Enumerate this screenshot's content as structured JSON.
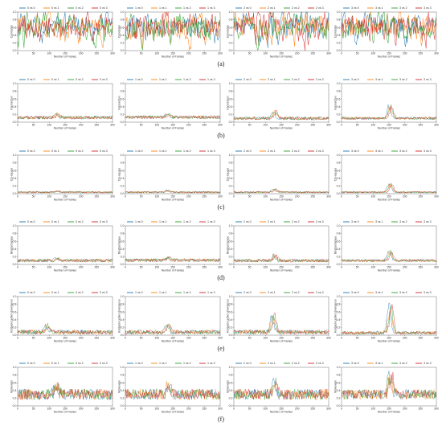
{
  "colors": {
    "series": [
      "#1f77b4",
      "#ff7f0e",
      "#2ca02c",
      "#d62728"
    ],
    "axis": "#333333",
    "background": "#ffffff"
  },
  "x_ticks": [
    0,
    50,
    100,
    150,
    200,
    250,
    300
  ],
  "x_axis_label": "Number of Frames",
  "chart_data": [
    {
      "type": "line",
      "panel": "(a)",
      "ylabel": "Correlation",
      "yticks": [
        0.0,
        0.2,
        0.4,
        0.6,
        0.8,
        1.0
      ],
      "ylim": [
        0,
        1.0
      ],
      "xlim": [
        0,
        300
      ],
      "subplots": [
        {
          "series": [
            {
              "name": "0 vs 0"
            },
            {
              "name": "0 vs 1"
            },
            {
              "name": "0 vs 2"
            },
            {
              "name": "0 vs 3"
            }
          ],
          "profile": {
            "base": 0.45,
            "noise": 0.45,
            "peak_x": 0,
            "peak_h": 0,
            "spiky": true
          }
        },
        {
          "series": [
            {
              "name": "1 vs 0"
            },
            {
              "name": "1 vs 1"
            },
            {
              "name": "1 vs 2"
            },
            {
              "name": "1 vs 3"
            }
          ],
          "profile": {
            "base": 0.45,
            "noise": 0.45,
            "peak_x": 0,
            "peak_h": 0,
            "spiky": true
          }
        },
        {
          "series": [
            {
              "name": "2 vs 0"
            },
            {
              "name": "2 vs 1"
            },
            {
              "name": "2 vs 2"
            },
            {
              "name": "2 vs 3"
            }
          ],
          "profile": {
            "base": 0.45,
            "noise": 0.45,
            "peak_x": 0,
            "peak_h": 0,
            "spiky": true
          }
        },
        {
          "series": [
            {
              "name": "3 vs 0"
            },
            {
              "name": "3 vs 1"
            },
            {
              "name": "3 vs 2"
            },
            {
              "name": "3 vs 3"
            }
          ],
          "profile": {
            "base": 0.45,
            "noise": 0.45,
            "peak_x": 0,
            "peak_h": 0,
            "spiky": true
          }
        }
      ]
    },
    {
      "type": "line",
      "panel": "(b)",
      "ylabel": "Intersection",
      "yticks": [
        0.0,
        0.2,
        0.4,
        0.6,
        0.8,
        1.0
      ],
      "ylim": [
        0,
        1.0
      ],
      "xlim": [
        0,
        300
      ],
      "subplots": [
        {
          "series": [
            {
              "name": "0 vs 0"
            },
            {
              "name": "0 vs 1"
            },
            {
              "name": "0 vs 2"
            },
            {
              "name": "0 vs 3"
            }
          ],
          "profile": {
            "base": 0.12,
            "noise": 0.06,
            "peak_x": 120,
            "peak_h": 0.1,
            "spiky": false
          }
        },
        {
          "series": [
            {
              "name": "1 vs 0"
            },
            {
              "name": "1 vs 1"
            },
            {
              "name": "1 vs 2"
            },
            {
              "name": "1 vs 3"
            }
          ],
          "profile": {
            "base": 0.13,
            "noise": 0.06,
            "peak_x": 130,
            "peak_h": 0.1,
            "spiky": false
          }
        },
        {
          "series": [
            {
              "name": "2 vs 0"
            },
            {
              "name": "2 vs 1"
            },
            {
              "name": "2 vs 2"
            },
            {
              "name": "2 vs 3"
            }
          ],
          "profile": {
            "base": 0.1,
            "noise": 0.06,
            "peak_x": 125,
            "peak_h": 0.2,
            "spiky": false
          }
        },
        {
          "series": [
            {
              "name": "3 vs 0"
            },
            {
              "name": "3 vs 1"
            },
            {
              "name": "3 vs 2"
            },
            {
              "name": "3 vs 3"
            }
          ],
          "profile": {
            "base": 0.1,
            "noise": 0.05,
            "peak_x": 150,
            "peak_h": 0.4,
            "spiky": false
          }
        }
      ]
    },
    {
      "type": "line",
      "panel": "(c)",
      "ylabel": "Chi-square",
      "yticks": [
        0.0,
        0.2,
        0.4,
        0.6,
        0.8,
        1.0
      ],
      "ylim": [
        0,
        1.0
      ],
      "xlim": [
        0,
        300
      ],
      "subplots": [
        {
          "series": [
            {
              "name": "0 vs 0"
            },
            {
              "name": "0 vs 1"
            },
            {
              "name": "0 vs 2"
            },
            {
              "name": "0 vs 3"
            }
          ],
          "profile": {
            "base": 0.04,
            "noise": 0.03,
            "peak_x": 120,
            "peak_h": 0.04,
            "spiky": false
          }
        },
        {
          "series": [
            {
              "name": "1 vs 0"
            },
            {
              "name": "1 vs 1"
            },
            {
              "name": "1 vs 2"
            },
            {
              "name": "1 vs 3"
            }
          ],
          "profile": {
            "base": 0.04,
            "noise": 0.03,
            "peak_x": 130,
            "peak_h": 0.05,
            "spiky": false
          }
        },
        {
          "series": [
            {
              "name": "2 vs 0"
            },
            {
              "name": "2 vs 1"
            },
            {
              "name": "2 vs 2"
            },
            {
              "name": "2 vs 3"
            }
          ],
          "profile": {
            "base": 0.04,
            "noise": 0.03,
            "peak_x": 125,
            "peak_h": 0.1,
            "spiky": false
          }
        },
        {
          "series": [
            {
              "name": "3 vs 0"
            },
            {
              "name": "3 vs 1"
            },
            {
              "name": "3 vs 2"
            },
            {
              "name": "3 vs 3"
            }
          ],
          "profile": {
            "base": 0.04,
            "noise": 0.03,
            "peak_x": 150,
            "peak_h": 0.25,
            "spiky": false
          }
        }
      ]
    },
    {
      "type": "line",
      "panel": "(d)",
      "ylabel": "Bhattacharyya",
      "yticks": [
        0.0,
        0.2,
        0.4,
        0.6,
        0.8,
        1.0
      ],
      "ylim": [
        0,
        1.0
      ],
      "xlim": [
        0,
        300
      ],
      "subplots": [
        {
          "series": [
            {
              "name": "0 vs 0"
            },
            {
              "name": "0 vs 1"
            },
            {
              "name": "0 vs 2"
            },
            {
              "name": "0 vs 3"
            }
          ],
          "profile": {
            "base": 0.1,
            "noise": 0.06,
            "peak_x": 120,
            "peak_h": 0.08,
            "spiky": false
          }
        },
        {
          "series": [
            {
              "name": "1 vs 0"
            },
            {
              "name": "1 vs 1"
            },
            {
              "name": "1 vs 2"
            },
            {
              "name": "1 vs 3"
            }
          ],
          "profile": {
            "base": 0.11,
            "noise": 0.06,
            "peak_x": 130,
            "peak_h": 0.08,
            "spiky": false
          }
        },
        {
          "series": [
            {
              "name": "2 vs 0"
            },
            {
              "name": "2 vs 1"
            },
            {
              "name": "2 vs 2"
            },
            {
              "name": "2 vs 3"
            }
          ],
          "profile": {
            "base": 0.1,
            "noise": 0.06,
            "peak_x": 125,
            "peak_h": 0.15,
            "spiky": false
          }
        },
        {
          "series": [
            {
              "name": "3 vs 0"
            },
            {
              "name": "3 vs 1"
            },
            {
              "name": "3 vs 2"
            },
            {
              "name": "3 vs 3"
            }
          ],
          "profile": {
            "base": 0.1,
            "noise": 0.05,
            "peak_x": 150,
            "peak_h": 0.3,
            "spiky": false
          }
        }
      ]
    },
    {
      "type": "line",
      "panel": "(e)",
      "ylabel": "Kullback-Leibler divergence",
      "yticks": [
        0.0,
        0.2,
        0.4,
        0.6,
        0.8,
        1.0
      ],
      "ylim": [
        0,
        1.0
      ],
      "xlim": [
        0,
        300
      ],
      "subplots": [
        {
          "series": [
            {
              "name": "0 vs 0"
            },
            {
              "name": "0 vs 1"
            },
            {
              "name": "0 vs 2"
            },
            {
              "name": "0 vs 3"
            }
          ],
          "profile": {
            "base": 0.08,
            "noise": 0.08,
            "peak_x": 90,
            "peak_h": 0.2,
            "spiky": false
          }
        },
        {
          "series": [
            {
              "name": "1 vs 0"
            },
            {
              "name": "1 vs 1"
            },
            {
              "name": "1 vs 2"
            },
            {
              "name": "1 vs 3"
            }
          ],
          "profile": {
            "base": 0.08,
            "noise": 0.08,
            "peak_x": 130,
            "peak_h": 0.25,
            "spiky": false
          }
        },
        {
          "series": [
            {
              "name": "2 vs 0"
            },
            {
              "name": "2 vs 1"
            },
            {
              "name": "2 vs 2"
            },
            {
              "name": "2 vs 3"
            }
          ],
          "profile": {
            "base": 0.08,
            "noise": 0.08,
            "peak_x": 120,
            "peak_h": 0.5,
            "spiky": false
          }
        },
        {
          "series": [
            {
              "name": "3 vs 0"
            },
            {
              "name": "3 vs 1"
            },
            {
              "name": "3 vs 2"
            },
            {
              "name": "3 vs 3"
            }
          ],
          "profile": {
            "base": 0.06,
            "noise": 0.06,
            "peak_x": 150,
            "peak_h": 0.85,
            "spiky": false
          }
        }
      ]
    },
    {
      "type": "line",
      "panel": "(f)",
      "ylabel": "Minkowski",
      "yticks": [
        0.0,
        0.2,
        0.4,
        0.6,
        0.8,
        1.0
      ],
      "ylim": [
        0,
        1.0
      ],
      "xlim": [
        0,
        300
      ],
      "subplots": [
        {
          "series": [
            {
              "name": "0 vs 0"
            },
            {
              "name": "0 vs 1"
            },
            {
              "name": "0 vs 2"
            },
            {
              "name": "0 vs 3"
            }
          ],
          "profile": {
            "base": 0.3,
            "noise": 0.2,
            "peak_x": 120,
            "peak_h": 0.25,
            "spiky": false
          }
        },
        {
          "series": [
            {
              "name": "1 vs 0"
            },
            {
              "name": "1 vs 1"
            },
            {
              "name": "1 vs 2"
            },
            {
              "name": "1 vs 3"
            }
          ],
          "profile": {
            "base": 0.3,
            "noise": 0.2,
            "peak_x": 130,
            "peak_h": 0.3,
            "spiky": false
          }
        },
        {
          "series": [
            {
              "name": "2 vs 0"
            },
            {
              "name": "2 vs 1"
            },
            {
              "name": "2 vs 2"
            },
            {
              "name": "2 vs 3"
            }
          ],
          "profile": {
            "base": 0.3,
            "noise": 0.2,
            "peak_x": 125,
            "peak_h": 0.4,
            "spiky": false
          }
        },
        {
          "series": [
            {
              "name": "3 vs 0"
            },
            {
              "name": "3 vs 1"
            },
            {
              "name": "3 vs 2"
            },
            {
              "name": "3 vs 3"
            }
          ],
          "profile": {
            "base": 0.3,
            "noise": 0.18,
            "peak_x": 150,
            "peak_h": 0.6,
            "spiky": false
          }
        }
      ]
    }
  ]
}
